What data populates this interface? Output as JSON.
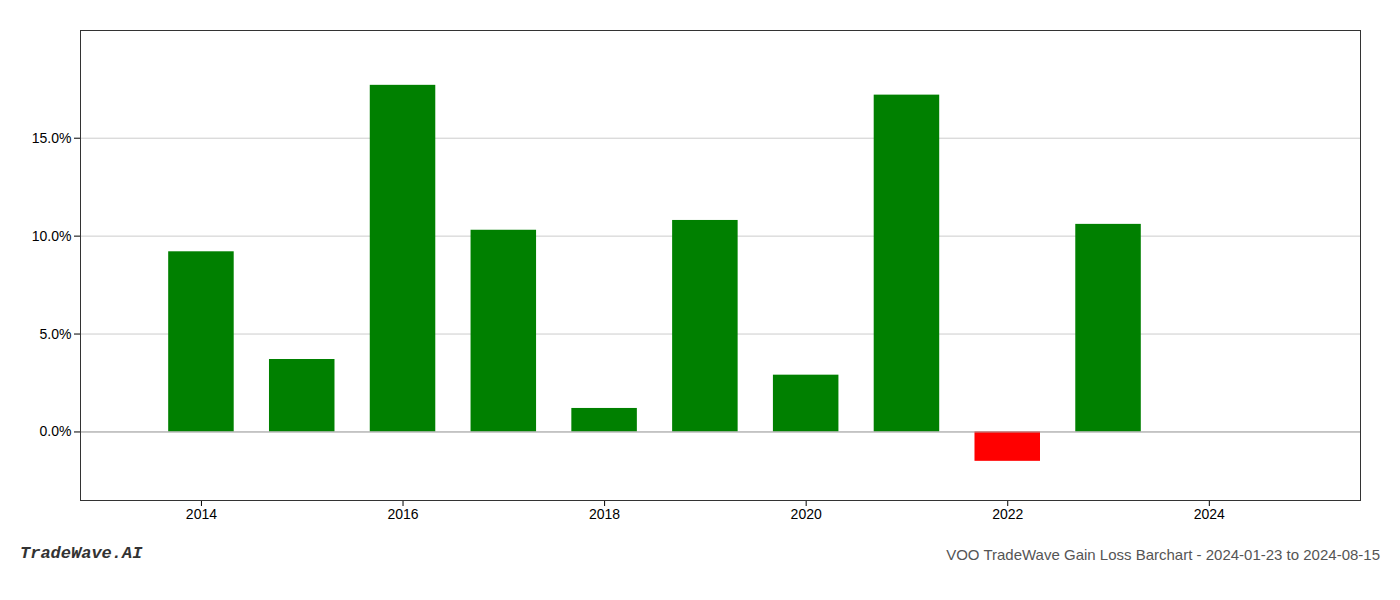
{
  "chart_data": {
    "type": "bar",
    "title": "VOO TradeWave Gain Loss Barchart - 2024-01-23 to 2024-08-15",
    "annotations": [
      "TradeWave.AI"
    ],
    "x": [
      2014,
      2015,
      2016,
      2017,
      2018,
      2019,
      2020,
      2021,
      2022,
      2023
    ],
    "values": [
      0.092,
      0.037,
      0.177,
      0.103,
      0.012,
      0.108,
      0.029,
      0.172,
      -0.015,
      0.106
    ],
    "colors": [
      "#008000",
      "#008000",
      "#008000",
      "#008000",
      "#008000",
      "#008000",
      "#008000",
      "#008000",
      "#ff0000",
      "#008000"
    ],
    "xlim": [
      2012.8,
      2025.5
    ],
    "xticks": [
      2014,
      2016,
      2018,
      2020,
      2022,
      2024
    ],
    "ylim": [
      -0.035,
      0.205
    ],
    "yticks": [
      {
        "value": 0.0,
        "label": "0.0%"
      },
      {
        "value": 0.05,
        "label": "5.0%"
      },
      {
        "value": 0.1,
        "label": "10.0%"
      },
      {
        "value": 0.15,
        "label": "15.0%"
      }
    ],
    "grid": true
  }
}
